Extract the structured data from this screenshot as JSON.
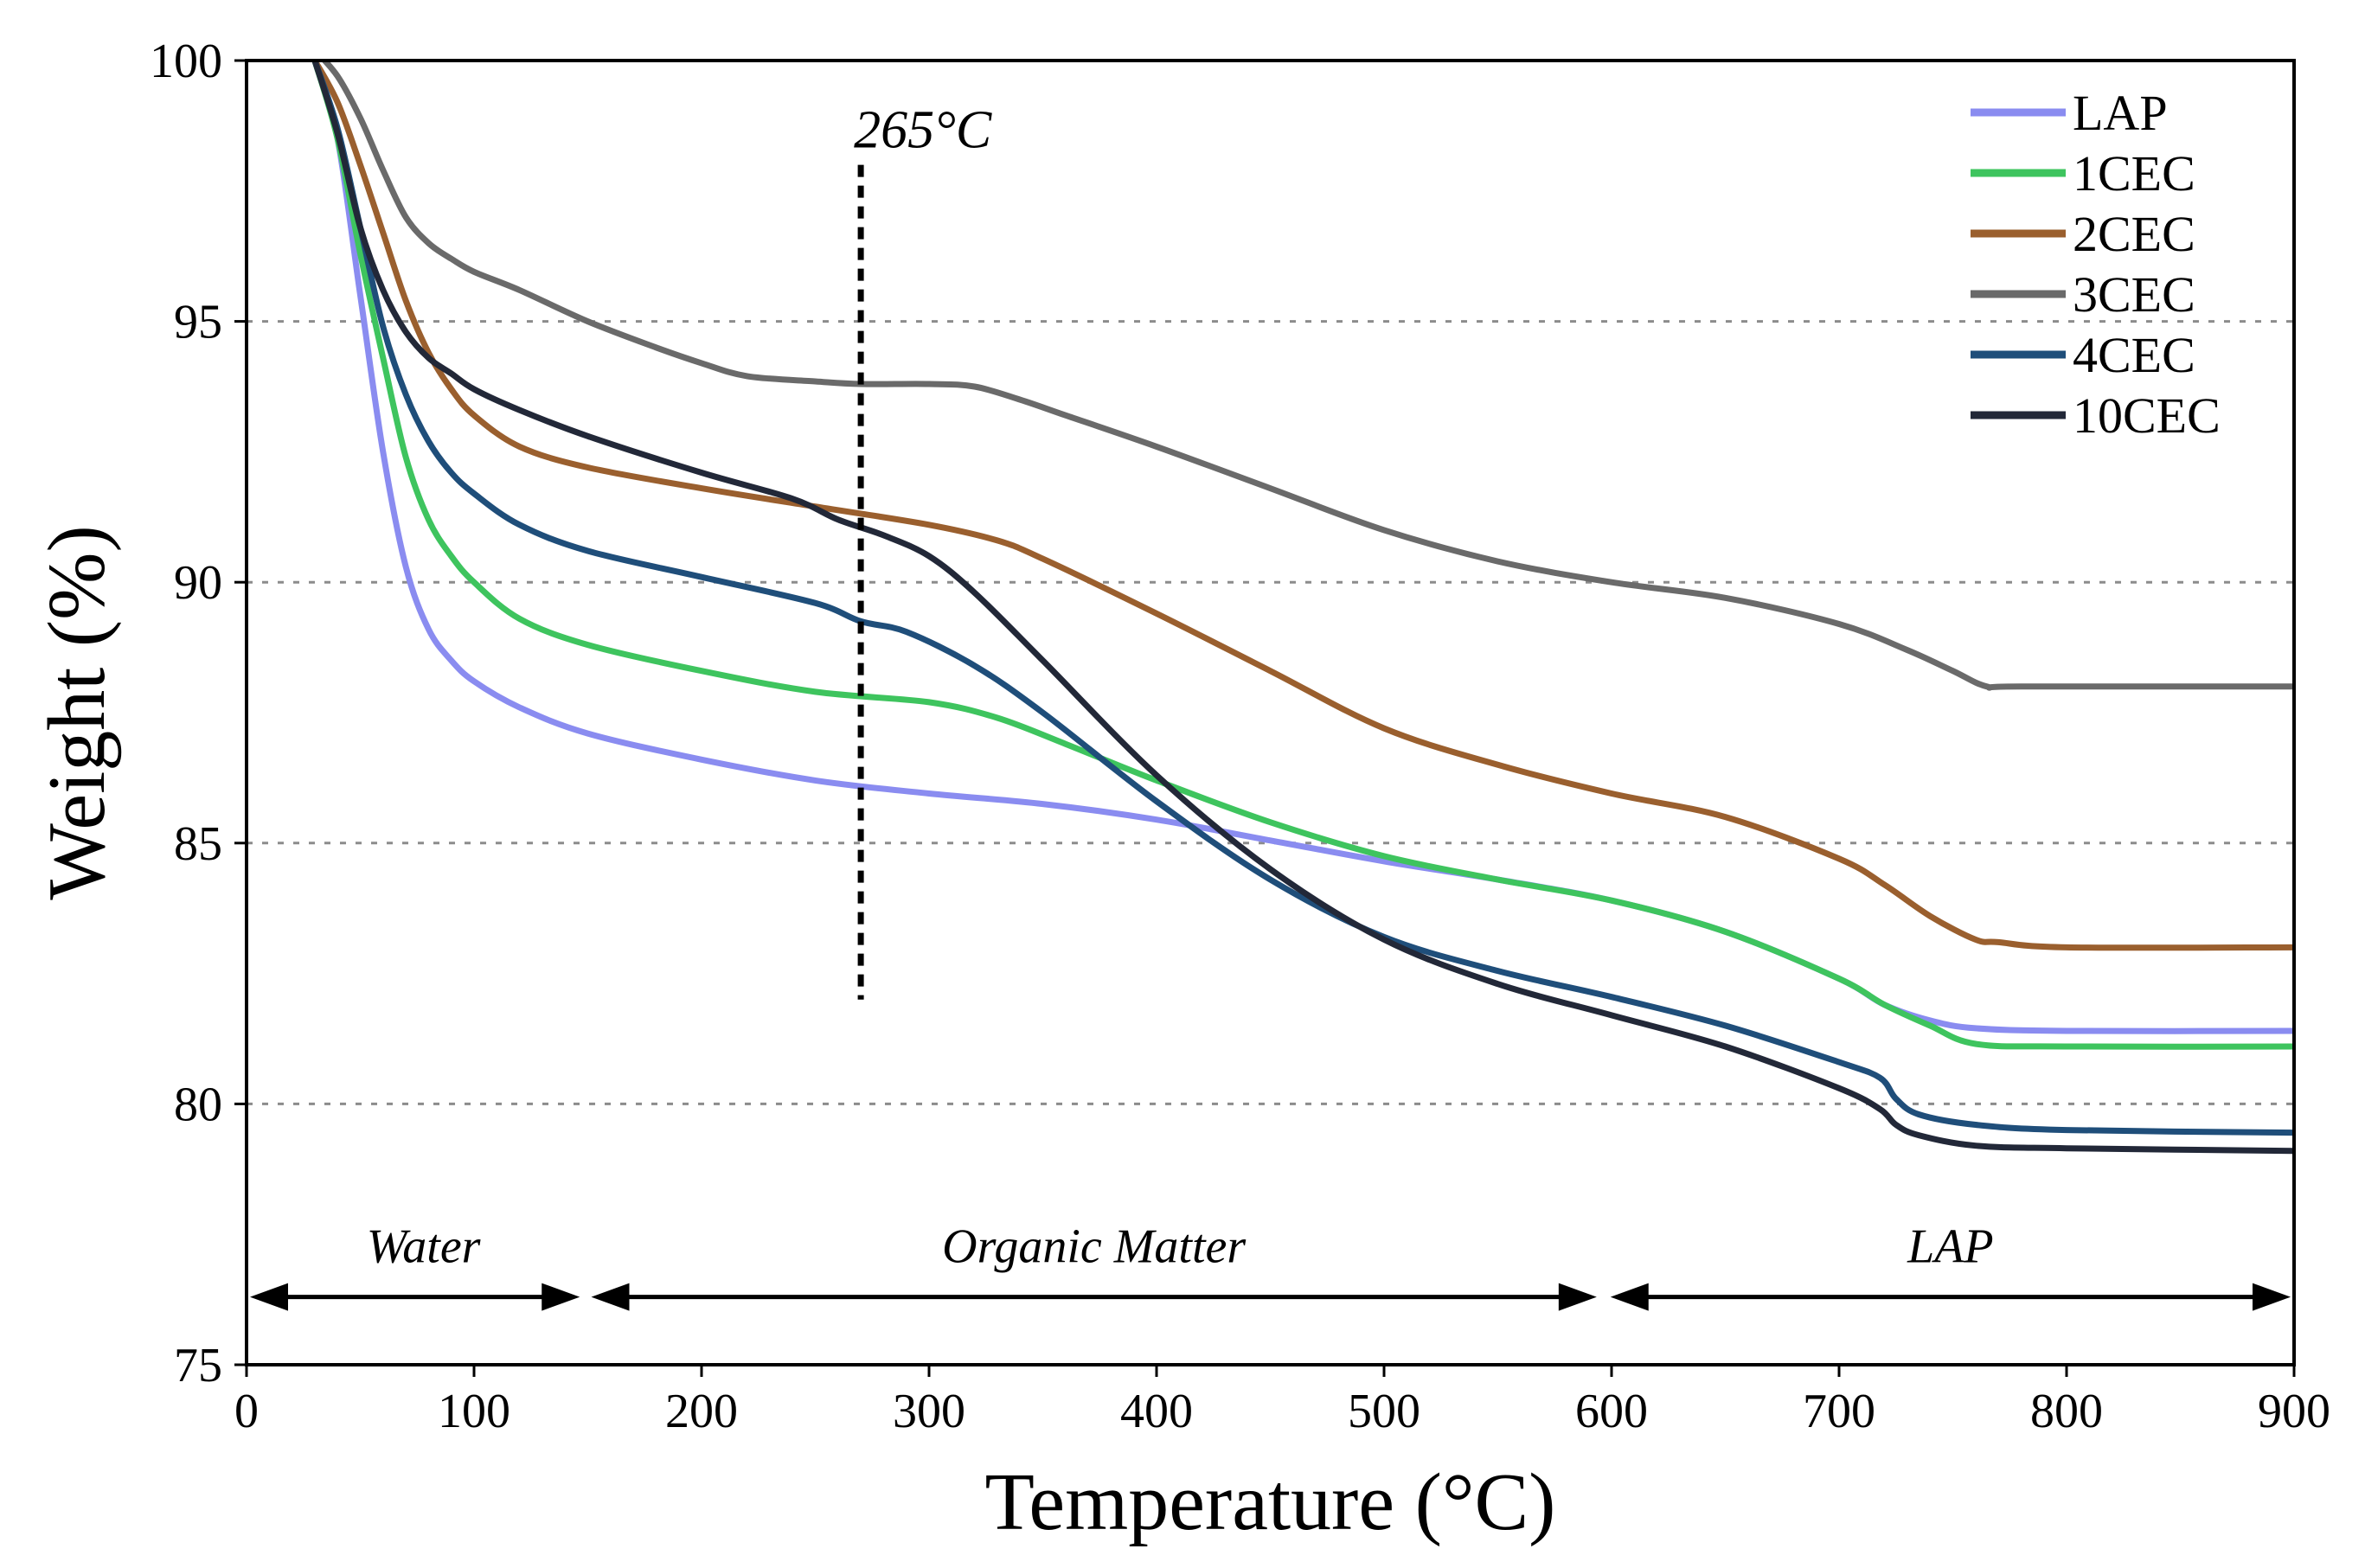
{
  "chart_data": {
    "type": "line",
    "xlabel": "Temperature (°C)",
    "ylabel": "Weight (%)",
    "xlim": [
      0,
      900
    ],
    "ylim": [
      75,
      100
    ],
    "xticks": [
      0,
      100,
      200,
      300,
      400,
      500,
      600,
      700,
      800,
      900
    ],
    "yticks": [
      75,
      80,
      85,
      90,
      95,
      100
    ],
    "grid_y": [
      80,
      85,
      90,
      95
    ],
    "legend_position": "top-right",
    "series": [
      {
        "name": "LAP",
        "color": "#8a8cf0",
        "x": [
          30,
          40,
          50,
          60,
          70,
          80,
          90,
          100,
          120,
          150,
          200,
          250,
          300,
          350,
          400,
          450,
          500,
          550,
          600,
          650,
          700,
          720,
          740,
          760,
          800,
          900
        ],
        "y": [
          100,
          98.5,
          95.5,
          92.5,
          90.3,
          89.1,
          88.5,
          88.1,
          87.6,
          87.1,
          86.6,
          86.2,
          85.95,
          85.75,
          85.45,
          85.05,
          84.65,
          84.3,
          83.9,
          83.3,
          82.4,
          81.9,
          81.6,
          81.45,
          81.4,
          81.4
        ]
      },
      {
        "name": "1CEC",
        "color": "#3ec45e",
        "x": [
          30,
          40,
          50,
          60,
          70,
          80,
          90,
          100,
          120,
          150,
          200,
          250,
          300,
          330,
          360,
          400,
          450,
          500,
          550,
          600,
          650,
          700,
          720,
          740,
          760,
          800,
          900
        ],
        "y": [
          100,
          98.5,
          96.3,
          94.3,
          92.4,
          91.2,
          90.5,
          90.0,
          89.3,
          88.8,
          88.3,
          87.9,
          87.7,
          87.4,
          86.9,
          86.2,
          85.4,
          84.75,
          84.3,
          83.9,
          83.3,
          82.4,
          81.9,
          81.5,
          81.15,
          81.1,
          81.1
        ]
      },
      {
        "name": "2CEC",
        "color": "#9a5f2e",
        "x": [
          30,
          40,
          50,
          60,
          70,
          80,
          90,
          100,
          120,
          150,
          200,
          250,
          300,
          330,
          350,
          400,
          450,
          500,
          550,
          600,
          650,
          700,
          720,
          740,
          760,
          770,
          800,
          900
        ],
        "y": [
          100,
          99.2,
          98.0,
          96.7,
          95.4,
          94.4,
          93.7,
          93.2,
          92.6,
          92.2,
          91.8,
          91.45,
          91.1,
          90.8,
          90.45,
          89.4,
          88.3,
          87.2,
          86.5,
          85.95,
          85.5,
          84.7,
          84.2,
          83.6,
          83.15,
          83.1,
          83.0,
          83.0
        ]
      },
      {
        "name": "3CEC",
        "color": "#6a6a6a",
        "x": [
          30,
          40,
          50,
          60,
          70,
          80,
          90,
          100,
          120,
          150,
          180,
          200,
          220,
          250,
          270,
          300,
          320,
          340,
          360,
          400,
          450,
          500,
          550,
          600,
          650,
          700,
          730,
          750,
          765,
          780,
          900
        ],
        "y": [
          100.2,
          99.7,
          98.9,
          97.9,
          97.0,
          96.5,
          96.2,
          95.95,
          95.6,
          95.0,
          94.5,
          94.2,
          93.95,
          93.85,
          93.8,
          93.8,
          93.75,
          93.5,
          93.2,
          92.6,
          91.8,
          91.0,
          90.4,
          90.0,
          89.7,
          89.2,
          88.7,
          88.3,
          88.0,
          88.0,
          88.0
        ]
      },
      {
        "name": "4CEC",
        "color": "#1f4e7a",
        "x": [
          30,
          40,
          50,
          60,
          70,
          80,
          90,
          100,
          120,
          150,
          200,
          250,
          270,
          290,
          320,
          350,
          400,
          450,
          500,
          550,
          600,
          650,
          700,
          718,
          725,
          735,
          760,
          800,
          900
        ],
        "y": [
          100,
          98.7,
          96.8,
          94.9,
          93.6,
          92.7,
          92.1,
          91.7,
          91.1,
          90.6,
          90.1,
          89.6,
          89.25,
          89.05,
          88.4,
          87.5,
          85.8,
          84.3,
          83.2,
          82.55,
          82.05,
          81.5,
          80.8,
          80.5,
          80.1,
          79.8,
          79.6,
          79.5,
          79.45
        ]
      },
      {
        "name": "10CEC",
        "color": "#222838",
        "x": [
          30,
          40,
          50,
          60,
          70,
          80,
          90,
          100,
          120,
          150,
          200,
          240,
          260,
          280,
          300,
          320,
          350,
          400,
          450,
          500,
          550,
          600,
          650,
          700,
          718,
          725,
          735,
          760,
          800,
          900
        ],
        "y": [
          100,
          98.6,
          96.8,
          95.6,
          94.8,
          94.3,
          94.0,
          93.7,
          93.3,
          92.8,
          92.1,
          91.6,
          91.2,
          90.9,
          90.5,
          89.8,
          88.5,
          86.3,
          84.5,
          83.15,
          82.3,
          81.7,
          81.1,
          80.3,
          79.9,
          79.6,
          79.4,
          79.2,
          79.15,
          79.1
        ]
      }
    ],
    "annotations": {
      "marker_line": {
        "x": 270,
        "y_from": 98,
        "y_to": 82,
        "label": "265°C"
      },
      "regions": [
        {
          "label": "Water",
          "x_from": 0,
          "x_to": 148
        },
        {
          "label": "Organic Matter",
          "x_from": 150,
          "x_to": 595
        },
        {
          "label": "LAP",
          "x_from": 598,
          "x_to": 900
        }
      ]
    }
  }
}
